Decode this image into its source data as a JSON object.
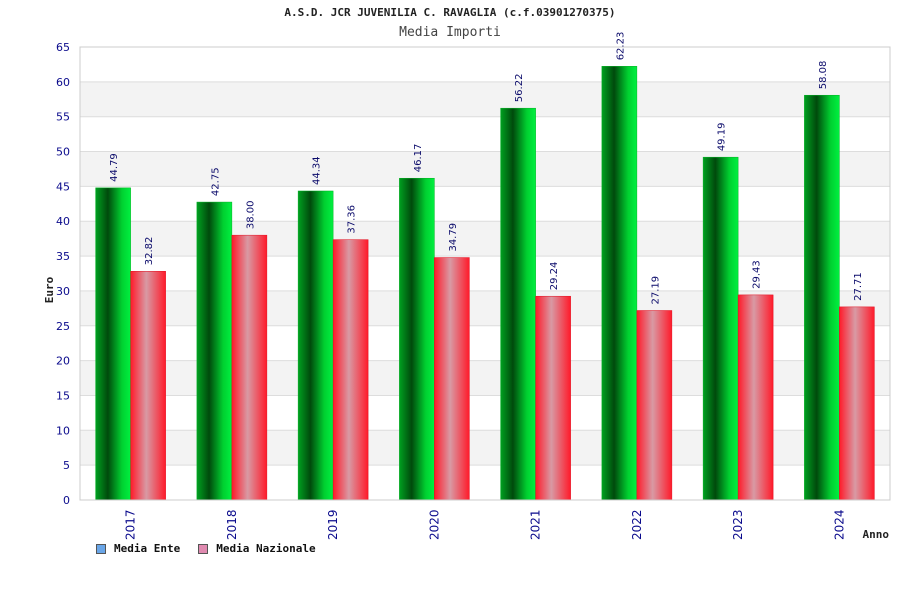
{
  "chart_data": {
    "type": "bar",
    "title": "A.S.D. JCR JUVENILIA C. RAVAGLIA (c.f.03901270375)",
    "subtitle": "Media Importi",
    "xlabel": "Anno",
    "ylabel": "Euro",
    "ylim": [
      0,
      65
    ],
    "yticks": [
      0,
      5,
      10,
      15,
      20,
      25,
      30,
      35,
      40,
      45,
      50,
      55,
      60,
      65
    ],
    "categories": [
      "2017",
      "2018",
      "2019",
      "2020",
      "2021",
      "2022",
      "2023",
      "2024"
    ],
    "series": [
      {
        "name": "Media Ente",
        "values": [
          44.79,
          42.75,
          44.34,
          46.17,
          56.22,
          62.23,
          49.19,
          58.08
        ],
        "labels": [
          "44.79",
          "42.75",
          "44.34",
          "46.17",
          "56.22",
          "62.23",
          "49.19",
          "58.08"
        ]
      },
      {
        "name": "Media Nazionale",
        "values": [
          32.82,
          38.0,
          37.36,
          34.79,
          29.24,
          27.19,
          29.43,
          27.71
        ],
        "labels": [
          "32.82",
          "38.00",
          "37.36",
          "34.79",
          "29.24",
          "27.19",
          "29.43",
          "27.71"
        ]
      }
    ],
    "legend": [
      {
        "label": "Media Ente",
        "color": "#6aa6e8"
      },
      {
        "label": "Media Nazionale",
        "color": "#e08ab0"
      }
    ],
    "grid": true,
    "legend_position": "bottom-left"
  }
}
